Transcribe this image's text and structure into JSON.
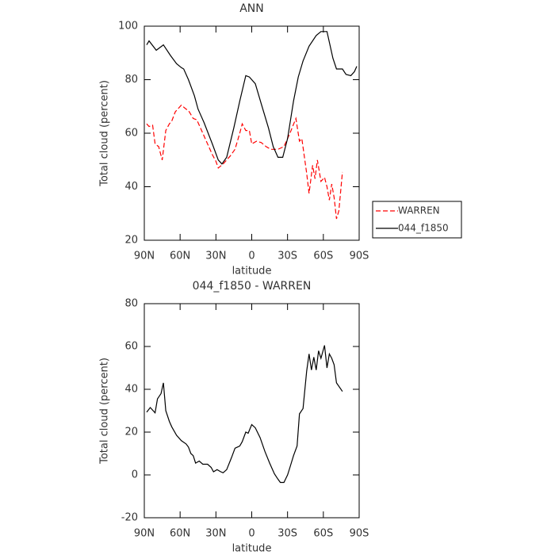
{
  "chart_data": [
    {
      "type": "line",
      "title": "ANN",
      "x_label": "latitude",
      "y_label": "Total cloud (percent)",
      "xlim": [
        90,
        -90
      ],
      "xticks": [
        {
          "value": 90,
          "label": "90N"
        },
        {
          "value": 60,
          "label": "60N"
        },
        {
          "value": 30,
          "label": "30N"
        },
        {
          "value": 0,
          "label": "0"
        },
        {
          "value": -30,
          "label": "30S"
        },
        {
          "value": -60,
          "label": "60S"
        },
        {
          "value": -90,
          "label": "90S"
        }
      ],
      "ylim": [
        20,
        100
      ],
      "yticks": [
        20,
        40,
        60,
        80,
        100
      ],
      "legend": "right",
      "series": [
        {
          "name": "WARREN",
          "color": "#ff0000",
          "dash": true,
          "x": [
            88,
            86,
            83,
            81,
            78,
            75,
            72,
            69,
            67,
            64,
            59,
            55,
            53,
            49,
            46,
            43,
            40,
            36,
            33,
            30,
            28,
            24,
            18,
            14,
            10,
            8,
            5,
            2,
            0,
            -4,
            -8,
            -12,
            -16,
            -22,
            -27,
            -32,
            -37,
            -40,
            -42,
            -46,
            -48,
            -51,
            -53,
            -55,
            -58,
            -61,
            -63,
            -65,
            -67,
            -69,
            -71,
            -73,
            -76
          ],
          "values": [
            63.5,
            62.5,
            63,
            56,
            55,
            50,
            61,
            63.5,
            64.5,
            68,
            70.5,
            69,
            68.5,
            65.5,
            65,
            62,
            59,
            55,
            52,
            49.5,
            47,
            48.5,
            51.5,
            54,
            60,
            63.5,
            61,
            61,
            56,
            57,
            56.5,
            55,
            54,
            54,
            55,
            60,
            65.5,
            57,
            58,
            45,
            37.5,
            48,
            43,
            50,
            42,
            43.5,
            40,
            35,
            41,
            36,
            28,
            31,
            45.5
          ]
        },
        {
          "name": "044_f1850",
          "color": "#000000",
          "dash": false,
          "x": [
            88,
            86,
            80,
            74,
            68,
            63,
            59,
            57,
            53,
            48,
            45,
            40,
            33,
            28,
            25,
            21,
            15,
            10,
            5,
            2,
            -3,
            -8,
            -14,
            -18,
            -22,
            -26,
            -30,
            -35,
            -39,
            -43,
            -48,
            -54,
            -58,
            -63,
            -65,
            -68,
            -71,
            -76,
            -79,
            -83,
            -86,
            -88
          ],
          "values": [
            93,
            94.5,
            91,
            93,
            89,
            86,
            84.5,
            84,
            80,
            74,
            69,
            64,
            56,
            50,
            48.5,
            51,
            62,
            72,
            81.5,
            81,
            78.5,
            71,
            62,
            55,
            51,
            51,
            58,
            72,
            81,
            87,
            92.5,
            96.5,
            98,
            98,
            94,
            88,
            84,
            84,
            82,
            81.5,
            83,
            85
          ]
        }
      ]
    },
    {
      "type": "line",
      "title": "044_f1850 - WARREN",
      "x_label": "latitude",
      "y_label": "Total cloud (percent)",
      "xlim": [
        90,
        -90
      ],
      "xticks": [
        {
          "value": 90,
          "label": "90N"
        },
        {
          "value": 60,
          "label": "60N"
        },
        {
          "value": 30,
          "label": "30N"
        },
        {
          "value": 0,
          "label": "0"
        },
        {
          "value": -30,
          "label": "30S"
        },
        {
          "value": -60,
          "label": "60S"
        },
        {
          "value": -90,
          "label": "90S"
        }
      ],
      "ylim": [
        -20,
        80
      ],
      "yticks": [
        -20,
        0,
        20,
        40,
        60,
        80
      ],
      "series": [
        {
          "color": "#000000",
          "dash": false,
          "x": [
            88,
            85,
            81,
            79,
            76,
            74,
            72,
            69,
            67,
            63,
            59,
            55,
            53,
            51,
            49,
            47,
            44,
            41,
            37,
            34,
            32,
            29,
            26,
            24,
            21,
            17,
            14,
            10,
            8,
            5,
            3,
            0,
            -3,
            -7,
            -11,
            -15,
            -19,
            -22,
            -24,
            -27,
            -30,
            -32,
            -35,
            -38,
            -40,
            -43,
            -46,
            -48,
            -50,
            -52,
            -54,
            -56,
            -58,
            -61,
            -63,
            -65,
            -67,
            -69,
            -71,
            -76
          ],
          "values": [
            29.3,
            31.5,
            29,
            35.5,
            38,
            43,
            30,
            25,
            22.5,
            18.5,
            16,
            14.5,
            13,
            10,
            9,
            5.5,
            6.5,
            5,
            5,
            3.5,
            1.5,
            2.5,
            1.5,
            1,
            2.5,
            8,
            12.5,
            13.5,
            15.5,
            20,
            19.5,
            23.5,
            22,
            17.5,
            11,
            5.5,
            0.5,
            -2,
            -3.5,
            -3.5,
            0,
            3.5,
            9,
            13.5,
            28.5,
            31,
            48.5,
            56.5,
            49,
            55,
            49,
            58,
            54.5,
            60.5,
            50,
            56.5,
            54.5,
            51.5,
            43,
            39
          ]
        }
      ]
    }
  ]
}
